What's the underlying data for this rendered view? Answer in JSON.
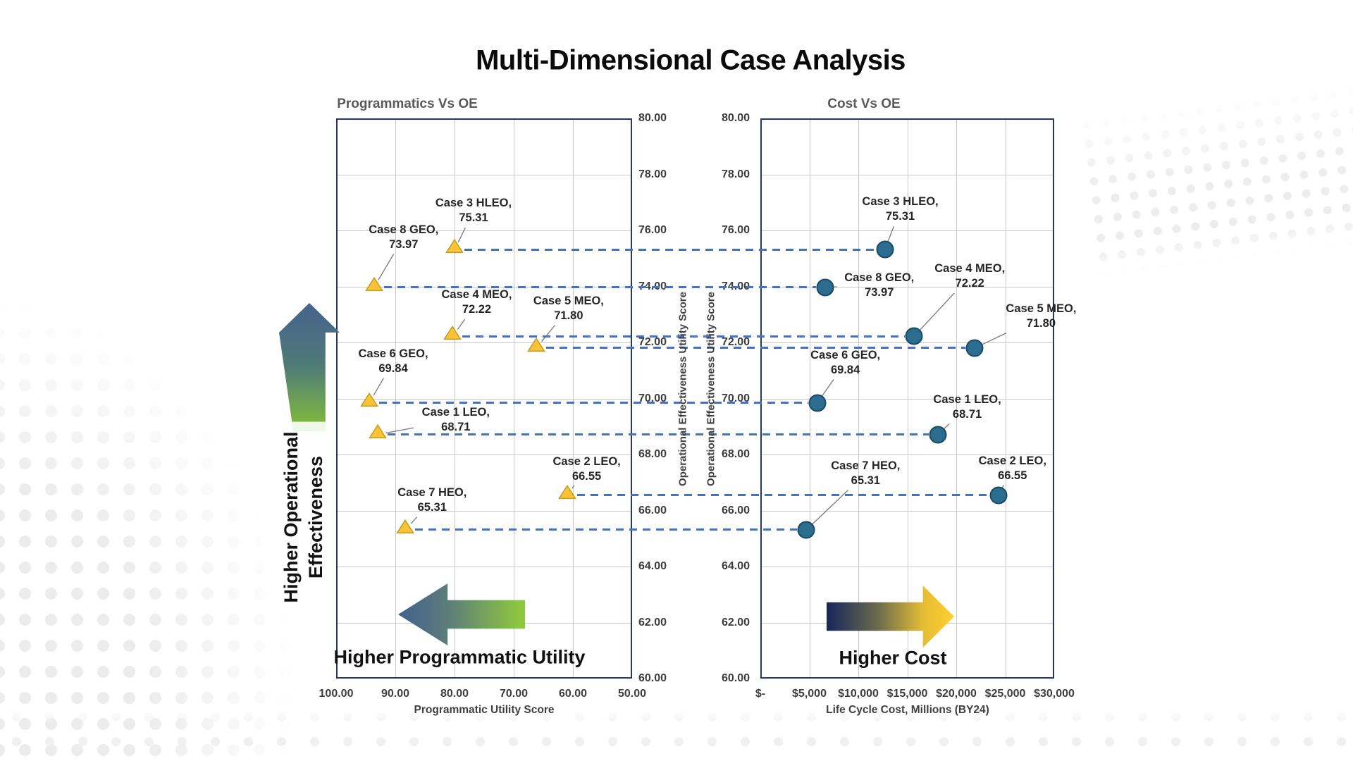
{
  "title": "Multi-Dimensional Case Analysis",
  "charts": {
    "left": {
      "title": "Programmatics Vs OE",
      "x_axis": {
        "title": "Programmatic Utility Score",
        "ticks": [
          "100.00",
          "90.00",
          "80.00",
          "70.00",
          "60.00",
          "50.00"
        ],
        "min": 50,
        "max": 100,
        "reversed": true
      },
      "y_axis": {
        "title": "Operational Effectiveness Utility Score",
        "ticks": [
          "80.00",
          "78.00",
          "76.00",
          "74.00",
          "72.00",
          "70.00",
          "68.00",
          "66.00",
          "64.00",
          "62.00",
          "60.00"
        ],
        "min": 60,
        "max": 80
      },
      "marker": {
        "shape": "triangle",
        "fill": "#FFC234",
        "stroke": "#BFA126"
      }
    },
    "right": {
      "title": "Cost Vs OE",
      "x_axis": {
        "title": "Life Cycle Cost, Millions (BY24)",
        "ticks": [
          "$-",
          "$5,000",
          "$10,000",
          "$15,000",
          "$20,000",
          "$25,000",
          "$30,000"
        ],
        "min": 0,
        "max": 30000
      },
      "y_axis": {
        "title": "Operational Effectiveness Utility Score",
        "ticks": [
          "80.00",
          "78.00",
          "76.00",
          "74.00",
          "72.00",
          "70.00",
          "68.00",
          "66.00",
          "64.00",
          "62.00",
          "60.00"
        ],
        "min": 60,
        "max": 80
      },
      "marker": {
        "shape": "circle",
        "fill": "#2A6D8E",
        "stroke": "#1B4A62"
      }
    }
  },
  "chart_data": {
    "type": "scatter",
    "cases": [
      {
        "name": "Case 1 LEO",
        "oe_score": 68.71,
        "programmatic_utility": 93.0,
        "cost_millions": 18100,
        "label": [
          "Case 1 LEO,",
          "68.71"
        ],
        "left_label_offset": [
          111,
          -21
        ],
        "right_label_offset": [
          42,
          -39
        ]
      },
      {
        "name": "Case 2 LEO",
        "oe_score": 66.55,
        "programmatic_utility": 61.0,
        "cost_millions": 24300,
        "label": [
          "Case 2 LEO,",
          "66.55"
        ],
        "left_label_offset": [
          28,
          -37
        ],
        "right_label_offset": [
          20,
          -38
        ]
      },
      {
        "name": "Case 3 HLEO",
        "oe_score": 75.31,
        "programmatic_utility": 80.0,
        "cost_millions": 12700,
        "label": [
          "Case 3 HLEO,",
          "75.31"
        ],
        "left_label_offset": [
          27,
          -55
        ],
        "right_label_offset": [
          22,
          -57
        ]
      },
      {
        "name": "Case 4 MEO",
        "oe_score": 72.22,
        "programmatic_utility": 80.3,
        "cost_millions": 15700,
        "label": [
          "Case 4 MEO,",
          "72.22"
        ],
        "left_label_offset": [
          34,
          -48
        ],
        "right_label_offset": [
          79,
          -85
        ]
      },
      {
        "name": "Case 5 MEO",
        "oe_score": 71.8,
        "programmatic_utility": 66.2,
        "cost_millions": 21900,
        "label": [
          "Case 5 MEO,",
          "71.80"
        ],
        "left_label_offset": [
          46,
          -56
        ],
        "right_label_offset": [
          94,
          -45
        ]
      },
      {
        "name": "Case 6 GEO",
        "oe_score": 69.84,
        "programmatic_utility": 94.4,
        "cost_millions": 5800,
        "label": [
          "Case 6 GEO,",
          "69.84"
        ],
        "left_label_offset": [
          34,
          -59
        ],
        "right_label_offset": [
          40,
          -57
        ]
      },
      {
        "name": "Case 7 HEO",
        "oe_score": 65.31,
        "programmatic_utility": 88.3,
        "cost_millions": 4700,
        "label": [
          "Case 7 HEO,",
          "65.31"
        ],
        "left_label_offset": [
          38,
          -42
        ],
        "right_label_offset": [
          84,
          -80
        ]
      },
      {
        "name": "Case 8 GEO",
        "oe_score": 73.97,
        "programmatic_utility": 93.6,
        "cost_millions": 6600,
        "label": [
          "Case 8 GEO,",
          "73.97"
        ],
        "left_label_offset": [
          42,
          -71
        ],
        "right_label_offset": [
          77,
          -3
        ]
      }
    ]
  },
  "annotations": {
    "oe_arrow": {
      "label_lines": [
        "Higher Operational",
        "Effectiveness"
      ],
      "direction": "up",
      "gradient": [
        "#47628E",
        "#7FBA3D"
      ]
    },
    "programmatic_arrow": {
      "label": "Higher Programmatic Utility",
      "direction": "left",
      "gradient": [
        "#41608F",
        "#8CC63F"
      ]
    },
    "cost_arrow": {
      "label": "Higher Cost",
      "direction": "right",
      "gradient": [
        "#17265A",
        "#FFD02E"
      ]
    }
  },
  "colors": {
    "connector_dash": "#4472C4",
    "gridline": "#C9C9C9",
    "plot_border": "#24386B",
    "leader_line": "#7A7A7A",
    "tick_text": "#3D3D3D",
    "chart_title_text": "#595959",
    "case_label_text": "#262626"
  }
}
